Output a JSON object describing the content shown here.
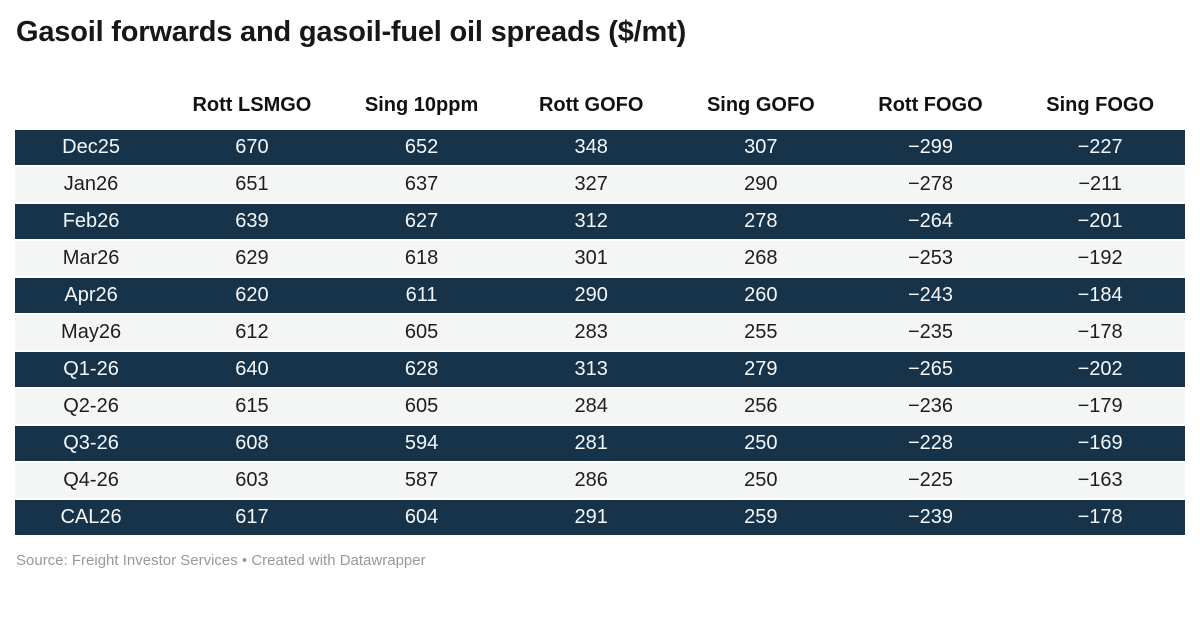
{
  "header": {
    "title": "Gasoil forwards and gasoil-fuel oil spreads ($/mt)"
  },
  "table": {
    "label_column_header": ""
  },
  "footer": {
    "source": "Source: Freight Investor Services • Created with Datawrapper"
  },
  "colors": {
    "dark_row_bg": "#16334a",
    "dark_row_text": "#f5f7f8",
    "light_row_bg": "#f4f5f5",
    "light_row_text": "#1d1d1d",
    "title_text": "#171717",
    "header_text": "#111111",
    "source_text": "#999999",
    "page_bg": "#ffffff"
  },
  "chart_data": {
    "type": "table",
    "title": "Gasoil forwards and gasoil-fuel oil spreads ($/mt)",
    "categories": [
      "Dec25",
      "Jan26",
      "Feb26",
      "Mar26",
      "Apr26",
      "May26",
      "Q1-26",
      "Q2-26",
      "Q3-26",
      "Q4-26",
      "CAL26"
    ],
    "series": [
      {
        "name": "Rott LSMGO",
        "values": [
          670,
          651,
          639,
          629,
          620,
          612,
          640,
          615,
          608,
          603,
          617
        ]
      },
      {
        "name": "Sing 10ppm",
        "values": [
          652,
          637,
          627,
          618,
          611,
          605,
          628,
          605,
          594,
          587,
          604
        ]
      },
      {
        "name": "Rott GOFO",
        "values": [
          348,
          327,
          312,
          301,
          290,
          283,
          313,
          284,
          281,
          286,
          291
        ]
      },
      {
        "name": "Sing GOFO",
        "values": [
          307,
          290,
          278,
          268,
          260,
          255,
          279,
          256,
          250,
          250,
          259
        ]
      },
      {
        "name": "Rott FOGO",
        "values": [
          -299,
          -278,
          -264,
          -253,
          -243,
          -235,
          -265,
          -236,
          -228,
          -225,
          -239
        ]
      },
      {
        "name": "Sing FOGO",
        "values": [
          -227,
          -211,
          -201,
          -192,
          -184,
          -178,
          -202,
          -179,
          -169,
          -163,
          -178
        ]
      }
    ],
    "row_striping": "alternating dark/light, first row dark",
    "source_note": "Source: Freight Investor Services",
    "attribution": "Created with Datawrapper"
  }
}
